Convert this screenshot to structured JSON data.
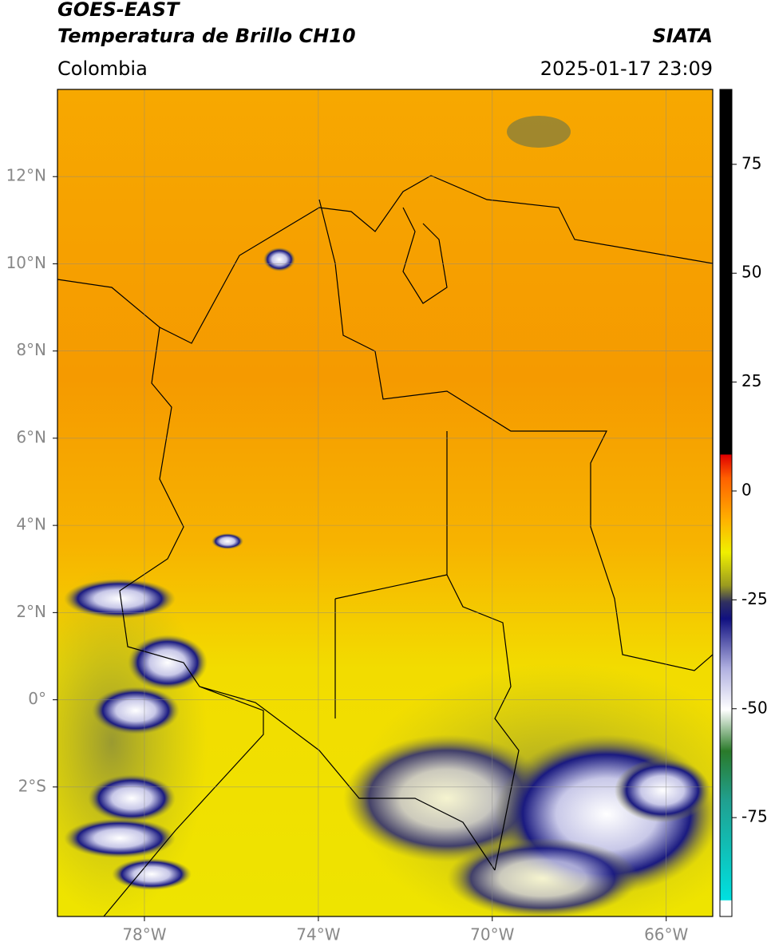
{
  "header": {
    "title": "GOES-EAST",
    "subtitle": "Temperatura de Brillo CH10",
    "source": "SIATA",
    "region": "Colombia",
    "datetime": "2025-01-17 23:09"
  },
  "map": {
    "xlim": [
      -80,
      -64.93
    ],
    "ylim": [
      -4.97,
      14.0
    ],
    "xticks": [
      {
        "value": -78,
        "label": "78°W"
      },
      {
        "value": -74,
        "label": "74°W"
      },
      {
        "value": -70,
        "label": "70°W"
      },
      {
        "value": -66,
        "label": "66°W"
      }
    ],
    "yticks": [
      {
        "value": 12,
        "label": "12°N"
      },
      {
        "value": 10,
        "label": "10°N"
      },
      {
        "value": 8,
        "label": "8°N"
      },
      {
        "value": 6,
        "label": "6°N"
      },
      {
        "value": 4,
        "label": "4°N"
      },
      {
        "value": 2,
        "label": "2°N"
      },
      {
        "value": 0,
        "label": "0°"
      },
      {
        "value": -2,
        "label": "2°S"
      }
    ],
    "grid": true
  },
  "colorbar": {
    "lim": [
      -97.7,
      92.2
    ],
    "ticks": [
      75,
      50,
      25,
      0,
      -25,
      -50,
      -75
    ]
  }
}
